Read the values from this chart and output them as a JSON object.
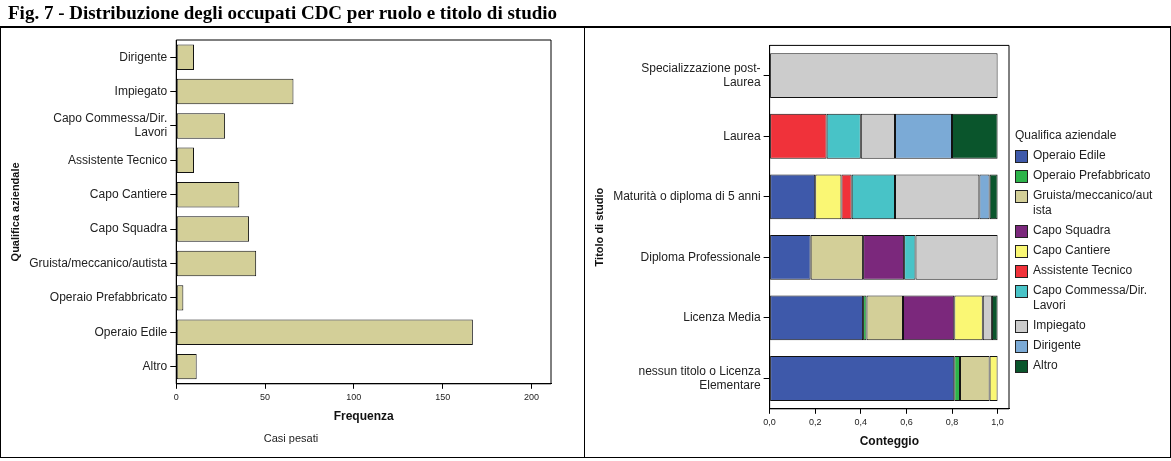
{
  "chart_data": [
    {
      "type": "bar",
      "orientation": "horizontal",
      "title": "Fig. 7 - Distribuzione degli occupati CDC per ruolo e titolo di studio",
      "xlabel": "Frequenza",
      "ylabel": "Qualifica aziendale",
      "annotations": [
        "Casi pesati"
      ],
      "categories": [
        "Dirigente",
        "Impiegato",
        "Capo Commessa/Dir. Lavori",
        "Assistente Tecnico",
        "Capo Cantiere",
        "Capo Squadra",
        "Gruista/meccanico/autista",
        "Operaio Prefabbricato",
        "Operaio Edile",
        "Altro"
      ],
      "values": [
        10,
        66,
        27.5,
        10,
        35.5,
        41,
        45,
        4,
        167,
        11.5
      ],
      "color": "#d3cf98",
      "xlim": [
        0,
        211
      ],
      "xticks": [
        0,
        50,
        100,
        150,
        200
      ],
      "grid": false,
      "legend": false
    },
    {
      "type": "bar",
      "orientation": "horizontal",
      "stacked": true,
      "xlabel": "Conteggio",
      "ylabel": "Titolo di studio",
      "legend_title": "Qualifica aziendale",
      "legend": "right",
      "grid": false,
      "categories": [
        "Specializzazione post-Laurea",
        "Laurea",
        "Maturità o diploma di 5 anni",
        "Diploma Professionale",
        "Licenza Media",
        "nessun titolo o Licenza Elementare"
      ],
      "series": [
        {
          "name": "Operaio Edile",
          "color": "#3e59aa",
          "values": [
            null,
            null,
            0.2,
            0.18,
            0.41,
            0.81
          ]
        },
        {
          "name": "Operaio Prefabbricato",
          "color": "#2db34a",
          "values": [
            null,
            null,
            null,
            null,
            0.015,
            0.025
          ]
        },
        {
          "name": "Gruista/meccanico/autista",
          "color": "#d3cf98",
          "values": [
            null,
            null,
            null,
            0.23,
            0.16,
            0.13
          ]
        },
        {
          "name": "Capo Squadra",
          "color": "#7b287c",
          "values": [
            null,
            null,
            null,
            0.18,
            0.225,
            null
          ]
        },
        {
          "name": "Capo Cantiere",
          "color": "#faf774",
          "values": [
            null,
            null,
            0.115,
            null,
            0.125,
            0.035
          ]
        },
        {
          "name": "Assistente Tecnico",
          "color": "#f0323a",
          "values": [
            null,
            0.25,
            0.045,
            null,
            null,
            null
          ]
        },
        {
          "name": "Capo Commessa/Dir. Lavori",
          "color": "#48c3c7",
          "values": [
            null,
            0.15,
            0.19,
            0.05,
            null,
            null
          ]
        },
        {
          "name": "Impiegato",
          "color": "#cccccc",
          "values": [
            1,
            0.15,
            0.37,
            0.36,
            0.04,
            null
          ]
        },
        {
          "name": "Dirigente",
          "color": "#7baad6",
          "values": [
            null,
            0.25,
            0.045,
            null,
            null,
            null
          ]
        },
        {
          "name": "Altro",
          "color": "#0a552c",
          "values": [
            null,
            0.2,
            0.035,
            null,
            0.025,
            null
          ]
        }
      ],
      "xlim": [
        0,
        1.05
      ],
      "xticks": [
        {
          "value": 0,
          "label": "0,0"
        },
        {
          "value": 0.2,
          "label": "0,2"
        },
        {
          "value": 0.4,
          "label": "0,4"
        },
        {
          "value": 0.6,
          "label": "0,6"
        },
        {
          "value": 0.8,
          "label": "0,8"
        },
        {
          "value": 1,
          "label": "1,0"
        }
      ]
    }
  ]
}
